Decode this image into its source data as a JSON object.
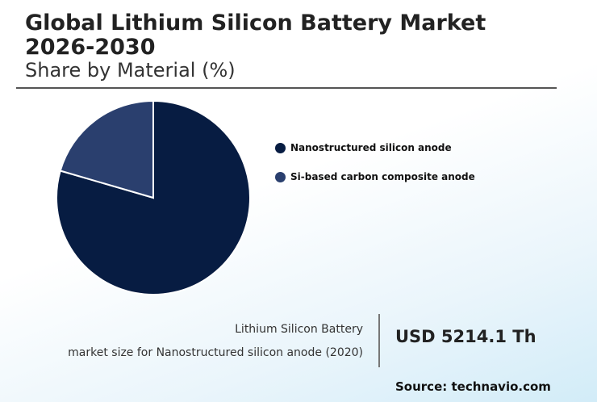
{
  "title": "Global Lithium Silicon Battery Market 2026-2030",
  "subtitle": "Share by Material (%)",
  "chart_data": {
    "type": "pie",
    "title": "Global Lithium Silicon Battery Market 2026-2030",
    "subtitle": "Share by Material (%)",
    "series": [
      {
        "name": "Nanostructured silicon anode",
        "value": 79.5,
        "color": "#071c42"
      },
      {
        "name": "Si-based carbon composite anode",
        "value": 20.5,
        "color": "#2a3f6e"
      }
    ],
    "legend": "right"
  },
  "info": {
    "label_line1": "Lithium Silicon Battery",
    "label_line2": "market size for Nanostructured silicon anode (2020)",
    "value": "USD 5214.1 Th"
  },
  "source": "Source: technavio.com"
}
